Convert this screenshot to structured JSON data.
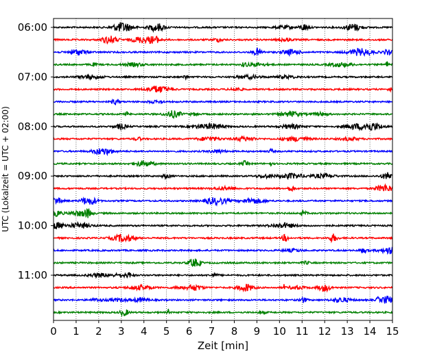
{
  "chart_data": {
    "type": "line",
    "xlabel": "Zeit  [min]",
    "ylabel": "UTC (Lokalzeit = UTC + 02:00)",
    "xlim": [
      0,
      15
    ],
    "x_ticks": [
      "0",
      "1",
      "2",
      "3",
      "4",
      "5",
      "6",
      "7",
      "8",
      "9",
      "10",
      "11",
      "12",
      "13",
      "14",
      "15"
    ],
    "y_ticks": [
      "06:00",
      "07:00",
      "08:00",
      "09:00",
      "10:00",
      "11:00"
    ],
    "trace_interval_min": 15,
    "start_time": "06:00",
    "trace_count": 24,
    "grid": "vertical-dotted",
    "colors": [
      "#000000",
      "#ff0000",
      "#0000ff",
      "#008000"
    ]
  }
}
